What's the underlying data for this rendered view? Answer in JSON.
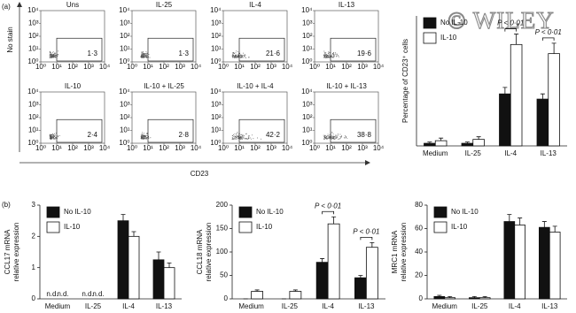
{
  "panel_labels": [
    "(a)",
    "(b)"
  ],
  "watermark": "© WILEY",
  "chart_data": [
    {
      "type": "flow",
      "ylabel": "No stain",
      "xlabel": "CD23",
      "log": true,
      "xlim": [
        1,
        10000
      ],
      "ylim": [
        1,
        10000
      ],
      "xticks": [
        {
          "value": 1,
          "label": "10⁰"
        },
        {
          "value": 10,
          "label": "10¹"
        },
        {
          "value": 100,
          "label": "10²"
        },
        {
          "value": 1000,
          "label": "10³"
        },
        {
          "value": 10000,
          "label": "10⁴"
        }
      ],
      "yticks": [
        {
          "value": 1,
          "label": "10⁰"
        },
        {
          "value": 10,
          "label": "10¹"
        },
        {
          "value": 100,
          "label": "10²"
        },
        {
          "value": 1000,
          "label": "10³"
        },
        {
          "value": 10000,
          "label": "10⁴"
        }
      ],
      "categories": [
        "Uns",
        "IL-25",
        "IL-4",
        "IL-13",
        "IL-10",
        "IL-10 + IL-25",
        "IL-10 + IL-4",
        "IL-10 + IL-13"
      ],
      "values": [
        1.3,
        1.3,
        21.6,
        19.6,
        2.4,
        2.8,
        42.2,
        38.8
      ],
      "value_labels": [
        "1·3",
        "1·3",
        "21·6",
        "19·6",
        "2·4",
        "2·8",
        "42·2",
        "38·8"
      ]
    },
    {
      "type": "bar",
      "ylabel": "Percentage of CD23⁺ cells",
      "legend": "upper left",
      "categories": [
        "Medium",
        "IL-25",
        "IL-4",
        "IL-13"
      ],
      "ylim": [
        0,
        50
      ],
      "series": [
        {
          "name": "No IL-10",
          "color": "#111111",
          "values": [
            1,
            1,
            20,
            18
          ],
          "errors": [
            0.5,
            0.5,
            2.5,
            2
          ]
        },
        {
          "name": "IL-10",
          "color": "#ffffff",
          "values": [
            2,
            2.5,
            39,
            35.5
          ],
          "errors": [
            1,
            1,
            4,
            4
          ]
        }
      ],
      "annotations": [
        "P < 0·01",
        "P < 0·01"
      ]
    },
    {
      "type": "bar",
      "ylabel": [
        "CCL17 mRNA",
        "relative expression"
      ],
      "legend": "upper left",
      "categories": [
        "Medium",
        "IL-25",
        "IL-4",
        "IL-13"
      ],
      "ylim": [
        0,
        3
      ],
      "yticks": [
        0,
        1,
        2,
        3
      ],
      "series": [
        {
          "name": "No IL-10",
          "color": "#111111",
          "values": [
            null,
            null,
            2.5,
            1.25
          ],
          "errors": [
            null,
            null,
            0.2,
            0.25
          ],
          "value_labels": [
            "n.d.",
            "n.d.",
            null,
            null
          ]
        },
        {
          "name": "IL-10",
          "color": "#ffffff",
          "values": [
            null,
            null,
            2.0,
            1.0
          ],
          "errors": [
            null,
            null,
            0.15,
            0.15
          ],
          "value_labels": [
            "n.d.",
            "n.d.",
            null,
            null
          ]
        }
      ]
    },
    {
      "type": "bar",
      "ylabel": [
        "CCL18 mRNA",
        "relative expression"
      ],
      "legend": "upper left",
      "categories": [
        "Medium",
        "IL-25",
        "IL-4",
        "IL-13"
      ],
      "ylim": [
        0,
        200
      ],
      "yticks": [
        0,
        50,
        100,
        150,
        200
      ],
      "series": [
        {
          "name": "No IL-10",
          "color": "#111111",
          "values": [
            0,
            0,
            78,
            45
          ],
          "errors": [
            0,
            0,
            8,
            5
          ]
        },
        {
          "name": "IL-10",
          "color": "#ffffff",
          "values": [
            16,
            16,
            160,
            110
          ],
          "errors": [
            3,
            3,
            15,
            10
          ]
        }
      ],
      "annotations": [
        "P < 0·01",
        "P < 0·01"
      ]
    },
    {
      "type": "bar",
      "ylabel": [
        "MRC1 mRNA",
        "relative expression"
      ],
      "legend": "upper left",
      "categories": [
        "Medium",
        "IL-25",
        "IL-4",
        "IL-13"
      ],
      "ylim": [
        0,
        80
      ],
      "yticks": [
        0,
        20,
        40,
        60,
        80
      ],
      "series": [
        {
          "name": "No IL-10",
          "color": "#111111",
          "values": [
            2,
            1,
            66,
            61
          ],
          "errors": [
            1,
            1,
            6,
            5
          ]
        },
        {
          "name": "IL-10",
          "color": "#ffffff",
          "values": [
            1,
            1,
            63,
            57
          ],
          "errors": [
            1,
            1,
            6,
            5
          ]
        }
      ]
    }
  ]
}
